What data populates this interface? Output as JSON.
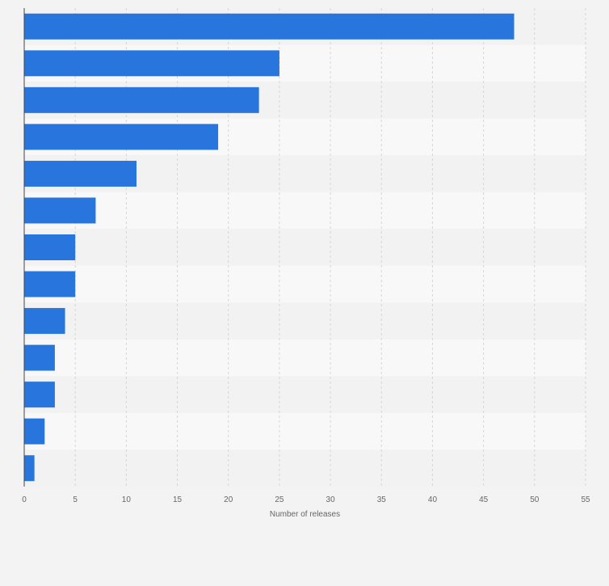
{
  "chart_data": {
    "type": "bar",
    "orientation": "horizontal",
    "categories": [
      "",
      "",
      "",
      "",
      "",
      "",
      "",
      "",
      "",
      "",
      "",
      "",
      ""
    ],
    "values": [
      48,
      25,
      23,
      19,
      11,
      7,
      5,
      5,
      4,
      3,
      3,
      2,
      1
    ],
    "title": "",
    "xlabel": "Number of releases",
    "ylabel": "",
    "xlim": [
      0,
      55
    ],
    "x_ticks": [
      "0",
      "5",
      "10",
      "15",
      "20",
      "25",
      "30",
      "35",
      "40",
      "45",
      "50",
      "55"
    ],
    "grid": true,
    "legend": "none",
    "colors": {
      "bar": "#2876dd",
      "band_light": "#f8f8f8",
      "band_dark": "#f2f2f2",
      "grid": "#d6d6d6",
      "axis": "#444444",
      "tick_text": "#666666",
      "background": "#f3f3f3"
    }
  }
}
